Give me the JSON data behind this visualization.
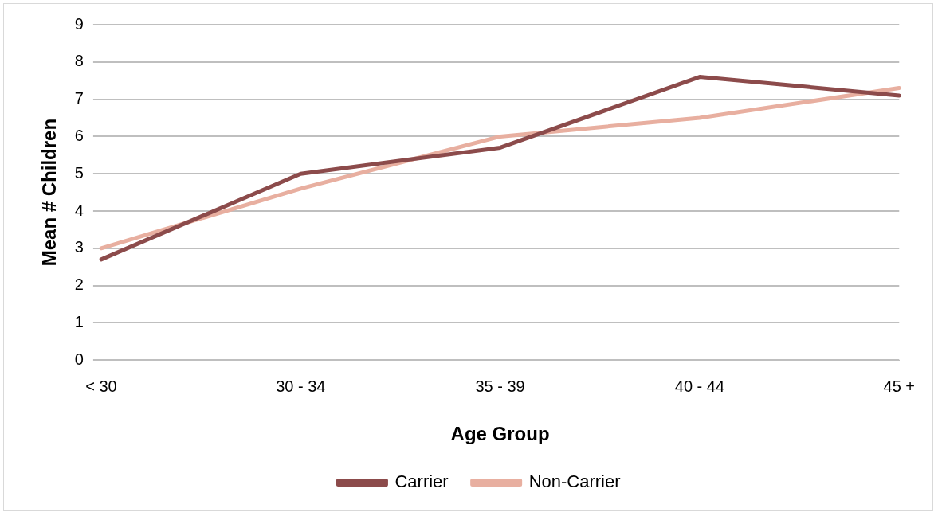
{
  "chart_data": {
    "type": "line",
    "xlabel": "Age Group",
    "ylabel": "Mean # Children",
    "categories": [
      "< 30",
      "30 - 34",
      "35 - 39",
      "40 - 44",
      "45 +"
    ],
    "series": [
      {
        "name": "Carrier",
        "color": "#8c4b4b",
        "values": [
          2.7,
          5.0,
          5.7,
          7.6,
          7.1
        ]
      },
      {
        "name": "Non-Carrier",
        "color": "#e8afa0",
        "values": [
          3.0,
          4.6,
          6.0,
          6.5,
          7.3
        ]
      }
    ],
    "ylim": [
      0,
      9
    ],
    "yticks": [
      0,
      1,
      2,
      3,
      4,
      5,
      6,
      7,
      8,
      9
    ],
    "grid": "y",
    "legend": "bottom",
    "marker": "none",
    "line_style": "solid"
  }
}
